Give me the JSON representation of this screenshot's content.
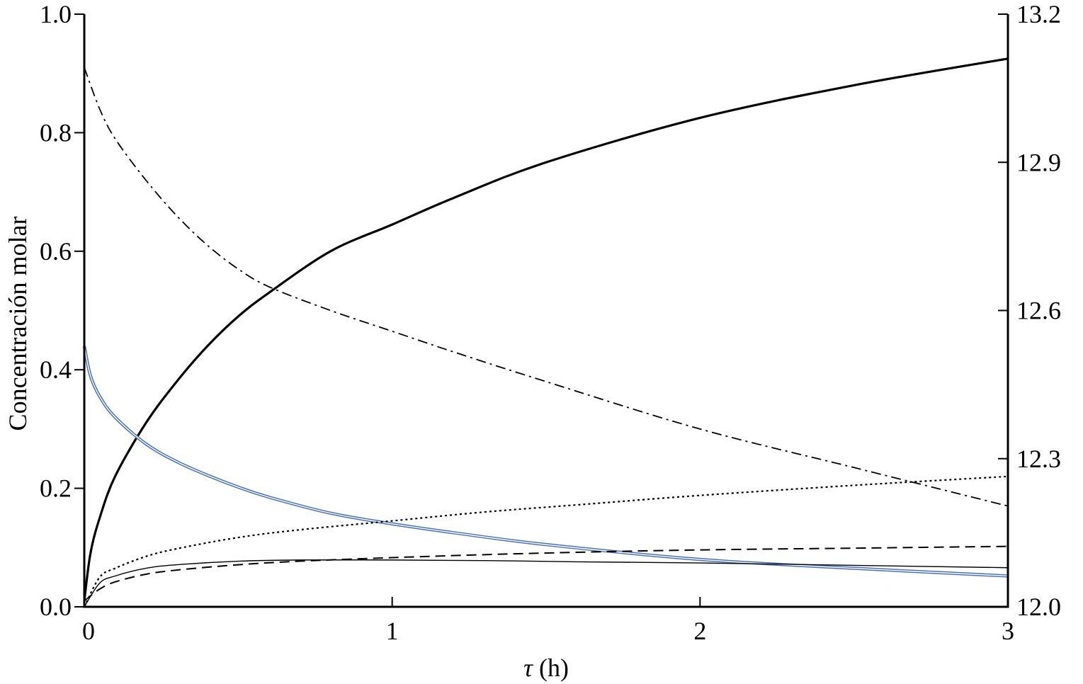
{
  "chart_data": {
    "type": "line",
    "xlabel_symbol": "τ",
    "xlabel_unit": " (h)",
    "ylabel": "Concentración molar",
    "xlim": [
      0,
      3
    ],
    "ylim": [
      0,
      1
    ],
    "y2lim": [
      12.0,
      13.2
    ],
    "x_ticks": [
      0,
      1,
      2,
      3
    ],
    "x_tick_labels": [
      "0",
      "1",
      "2",
      "3"
    ],
    "y_ticks": [
      0,
      0.2,
      0.4,
      0.6,
      0.8,
      1.0
    ],
    "y_tick_labels": [
      "0.0",
      "0.2",
      "0.4",
      "0.6",
      "0.8",
      "1.0"
    ],
    "y2_ticks": [
      12.0,
      12.3,
      12.6,
      12.9,
      13.2
    ],
    "y2_tick_labels": [
      "12.0",
      "12.3",
      "12.6",
      "12.9",
      "13.2"
    ],
    "grid": false,
    "legend": "none",
    "series": [
      {
        "axis": "left",
        "style": "solid-thick",
        "color": "#000000",
        "x": [
          0,
          0.02,
          0.05,
          0.1,
          0.2,
          0.3,
          0.4,
          0.5,
          0.6,
          0.8,
          1.0,
          1.2,
          1.5,
          2.0,
          2.5,
          3.0
        ],
        "y": [
          0.01,
          0.09,
          0.15,
          0.22,
          0.31,
          0.38,
          0.44,
          0.49,
          0.53,
          0.6,
          0.645,
          0.69,
          0.75,
          0.825,
          0.88,
          0.925
        ]
      },
      {
        "axis": "left",
        "style": "dashdot",
        "color": "#000000",
        "x": [
          0,
          0.05,
          0.1,
          0.2,
          0.3,
          0.4,
          0.5,
          0.6,
          0.8,
          1.0,
          1.2,
          1.5,
          2.0,
          2.5,
          3.0
        ],
        "y": [
          0.91,
          0.84,
          0.79,
          0.72,
          0.66,
          0.61,
          0.57,
          0.54,
          0.5,
          0.465,
          0.43,
          0.38,
          0.3,
          0.235,
          0.17
        ]
      },
      {
        "axis": "left",
        "style": "double-blue",
        "color": "#4a72b8",
        "x": [
          0,
          0.02,
          0.05,
          0.1,
          0.2,
          0.3,
          0.4,
          0.5,
          0.6,
          0.8,
          1.0,
          1.2,
          1.5,
          2.0,
          2.5,
          3.0
        ],
        "y": [
          0.44,
          0.39,
          0.355,
          0.32,
          0.275,
          0.245,
          0.222,
          0.202,
          0.185,
          0.158,
          0.14,
          0.125,
          0.105,
          0.08,
          0.065,
          0.052
        ]
      },
      {
        "axis": "left",
        "style": "dotted",
        "color": "#000000",
        "x": [
          0,
          0.05,
          0.1,
          0.2,
          0.3,
          0.5,
          0.7,
          1.0,
          1.3,
          1.6,
          2.0,
          2.5,
          3.0
        ],
        "y": [
          0.0,
          0.05,
          0.065,
          0.085,
          0.098,
          0.117,
          0.13,
          0.145,
          0.16,
          0.172,
          0.188,
          0.205,
          0.22
        ]
      },
      {
        "axis": "left",
        "style": "dashed",
        "color": "#000000",
        "x": [
          0,
          0.05,
          0.1,
          0.2,
          0.3,
          0.5,
          0.7,
          1.0,
          1.3,
          1.6,
          2.0,
          2.5,
          3.0
        ],
        "y": [
          0.01,
          0.03,
          0.042,
          0.055,
          0.062,
          0.071,
          0.077,
          0.083,
          0.088,
          0.092,
          0.096,
          0.099,
          0.102
        ]
      },
      {
        "axis": "left",
        "style": "solid-thin",
        "color": "#000000",
        "x": [
          0,
          0.05,
          0.1,
          0.2,
          0.3,
          0.5,
          0.7,
          1.0,
          1.3,
          1.6,
          2.0,
          2.5,
          3.0
        ],
        "y": [
          0.0,
          0.04,
          0.052,
          0.065,
          0.071,
          0.077,
          0.079,
          0.079,
          0.078,
          0.076,
          0.074,
          0.07,
          0.066
        ]
      }
    ]
  }
}
